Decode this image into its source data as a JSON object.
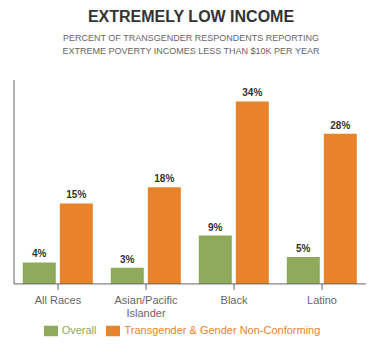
{
  "chart_data": {
    "type": "bar",
    "title": "EXTREMELY LOW INCOME",
    "subtitle": "PERCENT OF TRANSGENDER RESPONDENTS REPORTING\nEXTREME POVERTY INCOMES LESS THAN $10K PER YEAR",
    "categories": [
      "All Races",
      "Asian/Pacific\nIslander",
      "Black",
      "Latino"
    ],
    "series": [
      {
        "name": "Overall",
        "color": "#8faa5a",
        "values": [
          4,
          3,
          9,
          5
        ],
        "value_labels": [
          "4%",
          "3%",
          "9%",
          "5%"
        ]
      },
      {
        "name": "Transgender & Gender Non-Conforming",
        "color": "#e8832a",
        "values": [
          15,
          18,
          34,
          28
        ],
        "value_labels": [
          "15%",
          "18%",
          "34%",
          "28%"
        ]
      }
    ],
    "ylim": [
      0,
      38
    ],
    "grid": false,
    "legend": "bottom",
    "data_labels": true,
    "tick_labels": "x"
  }
}
